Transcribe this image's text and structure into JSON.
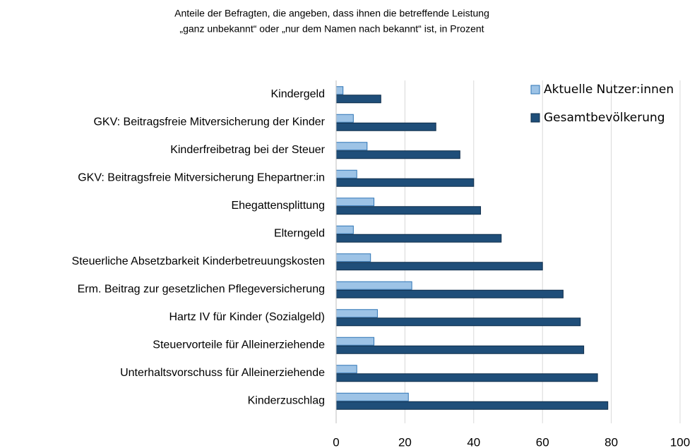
{
  "chart_data": {
    "type": "hbar",
    "title": [
      "Anteile der Befragten, die angeben, dass ihnen die betreffende Leistung",
      "„ganz unbekannt“ oder „nur dem Namen nach bekannt“ ist, in Prozent"
    ],
    "categories": [
      "Kindergeld",
      "GKV: Beitragsfreie Mitversicherung der Kinder",
      "Kinderfreibetrag bei der Steuer",
      "GKV: Beitragsfreie Mitversicherung Ehepartner:in",
      "Ehegattensplittung",
      "Elterngeld",
      "Steuerliche Absetzbarkeit Kinderbetreuungskosten",
      "Erm. Beitrag zur gesetzlichen Pflegeversicherung",
      "Hartz IV für Kinder (Sozialgeld)",
      "Steuervorteile für Alleinerziehende",
      "Unterhaltsvorschuss für Alleinerziehende",
      "Kinderzuschlag"
    ],
    "series": [
      {
        "name": "Aktuelle Nutzer:innen",
        "color": "#9dc3e6",
        "values": [
          2,
          5,
          9,
          6,
          11,
          5,
          10,
          22,
          12,
          11,
          6,
          21
        ]
      },
      {
        "name": "Gesamtbevölkerung",
        "color": "#1f4e79",
        "values": [
          13,
          29,
          36,
          40,
          42,
          48,
          60,
          66,
          71,
          72,
          76,
          79
        ]
      }
    ],
    "xlim": [
      0,
      100
    ],
    "xticks": [
      0,
      20,
      40,
      60,
      80,
      100
    ],
    "grid": true,
    "legend": "top-right"
  }
}
